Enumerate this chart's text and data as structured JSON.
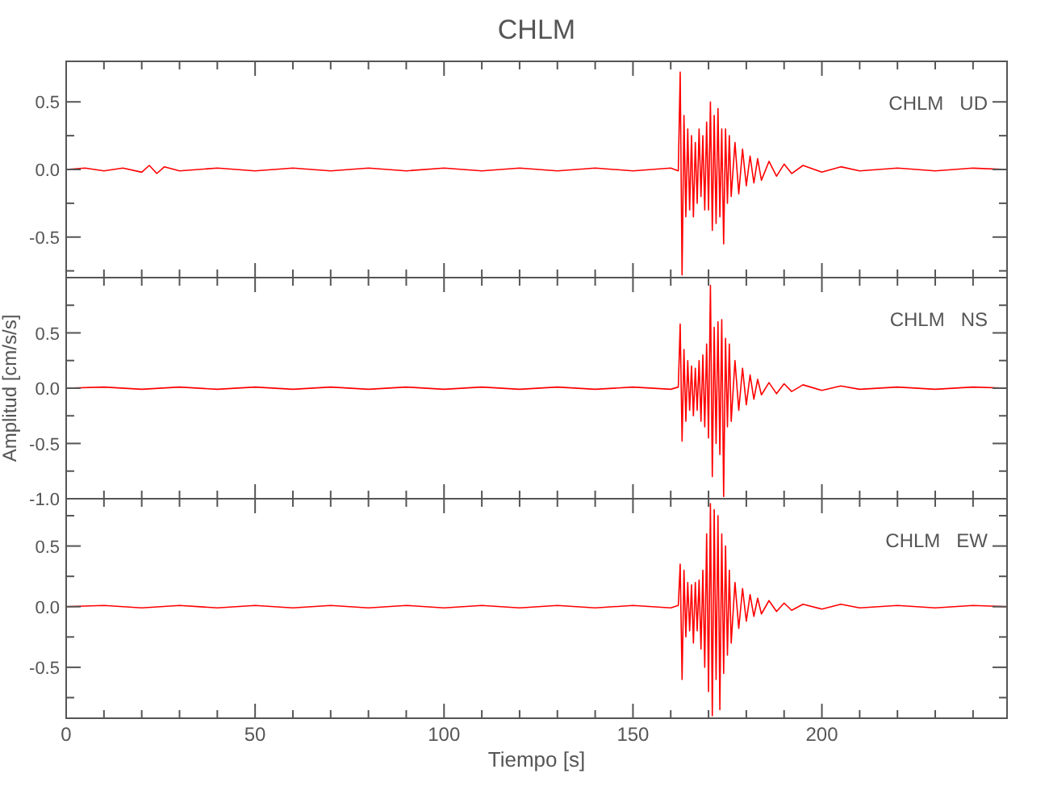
{
  "chart_data": [
    {
      "type": "line",
      "title": "CHLM",
      "annotations": [
        "CHLM   UD"
      ],
      "tick_labels": "y",
      "xlim": [
        0,
        249
      ],
      "ylim": [
        -0.8,
        0.8
      ],
      "xticks": [
        0,
        {
          "value": 10,
          "label": null
        },
        {
          "value": 20,
          "label": null
        },
        {
          "value": 30,
          "label": null
        },
        {
          "value": 40,
          "label": null
        },
        50,
        {
          "value": 60,
          "label": null
        },
        {
          "value": 70,
          "label": null
        },
        {
          "value": 80,
          "label": null
        },
        {
          "value": 90,
          "label": null
        },
        100,
        {
          "value": 110,
          "label": null
        },
        {
          "value": 120,
          "label": null
        },
        {
          "value": 130,
          "label": null
        },
        {
          "value": 140,
          "label": null
        },
        150,
        {
          "value": 160,
          "label": null
        },
        {
          "value": 170,
          "label": null
        },
        {
          "value": 180,
          "label": null
        },
        {
          "value": 190,
          "label": null
        },
        200,
        {
          "value": 210,
          "label": null
        },
        {
          "value": 220,
          "label": null
        },
        {
          "value": 230,
          "label": null
        },
        {
          "value": 240,
          "label": null
        }
      ],
      "yticks": [
        {
          "value": -0.75,
          "label": null
        },
        {
          "value": -0.5,
          "label": "-0.5"
        },
        {
          "value": -0.25,
          "label": null
        },
        {
          "value": 0,
          "label": "0.0"
        },
        {
          "value": 0.25,
          "label": null
        },
        {
          "value": 0.5,
          "label": "0.5"
        }
      ],
      "series": [
        {
          "color": "#ff0000",
          "x": [
            0,
            5,
            10,
            15,
            20,
            22,
            24,
            26,
            30,
            40,
            50,
            60,
            70,
            80,
            90,
            100,
            110,
            120,
            130,
            140,
            150,
            160,
            162,
            162.5,
            163,
            163.5,
            164,
            164.5,
            165,
            165.5,
            166,
            166.5,
            167,
            167.5,
            168,
            168.5,
            169,
            169.5,
            170,
            170.5,
            171,
            171.5,
            172,
            172.5,
            173,
            173.5,
            174,
            174.5,
            175,
            175.5,
            176,
            177,
            178,
            179,
            180,
            181,
            182,
            183,
            184,
            186,
            188,
            190,
            192,
            195,
            200,
            205,
            210,
            220,
            230,
            240,
            249
          ],
          "values": [
            0,
            0.01,
            -0.01,
            0.01,
            -0.02,
            0.03,
            -0.03,
            0.02,
            -0.01,
            0.01,
            -0.01,
            0.01,
            -0.01,
            0.01,
            -0.01,
            0.01,
            -0.01,
            0.01,
            -0.01,
            0.01,
            -0.01,
            0.01,
            -0.01,
            0.72,
            -0.78,
            0.4,
            -0.35,
            0.3,
            -0.3,
            0.25,
            -0.35,
            0.2,
            -0.25,
            0.3,
            -0.2,
            0.25,
            -0.3,
            0.35,
            -0.3,
            0.5,
            -0.45,
            0.4,
            -0.4,
            0.45,
            -0.35,
            0.3,
            -0.55,
            0.3,
            -0.25,
            0.25,
            -0.2,
            0.2,
            -0.18,
            0.15,
            -0.12,
            0.1,
            -0.1,
            0.08,
            -0.08,
            0.06,
            -0.05,
            0.04,
            -0.03,
            0.03,
            -0.02,
            0.02,
            -0.01,
            0.01,
            -0.01,
            0.01,
            0
          ]
        }
      ]
    },
    {
      "type": "line",
      "ylabel": "Amplitud [cm/s/s]",
      "annotations": [
        "CHLM   NS"
      ],
      "tick_labels": "y",
      "xlim": [
        0,
        249
      ],
      "ylim": [
        -1.0,
        1.0
      ],
      "xticks": [
        0,
        {
          "value": 10,
          "label": null
        },
        {
          "value": 20,
          "label": null
        },
        {
          "value": 30,
          "label": null
        },
        {
          "value": 40,
          "label": null
        },
        50,
        {
          "value": 60,
          "label": null
        },
        {
          "value": 70,
          "label": null
        },
        {
          "value": 80,
          "label": null
        },
        {
          "value": 90,
          "label": null
        },
        100,
        {
          "value": 110,
          "label": null
        },
        {
          "value": 120,
          "label": null
        },
        {
          "value": 130,
          "label": null
        },
        {
          "value": 140,
          "label": null
        },
        150,
        {
          "value": 160,
          "label": null
        },
        {
          "value": 170,
          "label": null
        },
        {
          "value": 180,
          "label": null
        },
        {
          "value": 190,
          "label": null
        },
        200,
        {
          "value": 210,
          "label": null
        },
        {
          "value": 220,
          "label": null
        },
        {
          "value": 230,
          "label": null
        },
        {
          "value": 240,
          "label": null
        }
      ],
      "yticks": [
        {
          "value": -1.0,
          "label": "-1.0"
        },
        {
          "value": -0.75,
          "label": null
        },
        {
          "value": -0.5,
          "label": "-0.5"
        },
        {
          "value": -0.25,
          "label": null
        },
        {
          "value": 0,
          "label": "0.0"
        },
        {
          "value": 0.25,
          "label": null
        },
        {
          "value": 0.5,
          "label": "0.5"
        },
        {
          "value": 0.75,
          "label": null
        }
      ],
      "series": [
        {
          "color": "#ff0000",
          "x": [
            0,
            10,
            20,
            30,
            40,
            50,
            60,
            70,
            80,
            90,
            100,
            110,
            120,
            130,
            140,
            150,
            160,
            162,
            162.5,
            163,
            163.5,
            164,
            164.5,
            165,
            165.5,
            166,
            166.5,
            167,
            167.5,
            168,
            168.5,
            169,
            169.5,
            170,
            170.5,
            171,
            171.5,
            172,
            172.5,
            173,
            173.5,
            174,
            174.5,
            175,
            175.5,
            176,
            177,
            178,
            179,
            180,
            181,
            182,
            183,
            184,
            186,
            188,
            190,
            192,
            195,
            200,
            205,
            210,
            220,
            230,
            240,
            249
          ],
          "values": [
            0,
            0.01,
            -0.01,
            0.01,
            -0.01,
            0.01,
            -0.01,
            0.01,
            -0.01,
            0.01,
            -0.01,
            0.01,
            -0.01,
            0.01,
            -0.01,
            0.01,
            -0.01,
            0.01,
            0.58,
            -0.48,
            0.35,
            -0.3,
            0.25,
            -0.2,
            0.2,
            -0.25,
            0.18,
            -0.2,
            0.25,
            -0.3,
            0.3,
            -0.35,
            0.4,
            -0.45,
            0.93,
            -0.8,
            0.55,
            -0.5,
            0.6,
            -0.6,
            0.62,
            -0.98,
            0.45,
            -0.35,
            0.4,
            -0.3,
            0.25,
            -0.2,
            0.18,
            -0.15,
            0.12,
            -0.1,
            0.08,
            -0.06,
            0.05,
            -0.05,
            0.04,
            -0.03,
            0.03,
            -0.02,
            0.02,
            -0.01,
            0.01,
            -0.01,
            0.01,
            0
          ]
        }
      ]
    },
    {
      "type": "line",
      "xlabel": "Tiempo [s]",
      "annotations": [
        "CHLM   EW"
      ],
      "xlim": [
        0,
        249
      ],
      "ylim": [
        -0.92,
        0.89
      ],
      "xticks": [
        0,
        {
          "value": 10,
          "label": null
        },
        {
          "value": 20,
          "label": null
        },
        {
          "value": 30,
          "label": null
        },
        {
          "value": 40,
          "label": null
        },
        50,
        {
          "value": 60,
          "label": null
        },
        {
          "value": 70,
          "label": null
        },
        {
          "value": 80,
          "label": null
        },
        {
          "value": 90,
          "label": null
        },
        100,
        {
          "value": 110,
          "label": null
        },
        {
          "value": 120,
          "label": null
        },
        {
          "value": 130,
          "label": null
        },
        {
          "value": 140,
          "label": null
        },
        150,
        {
          "value": 160,
          "label": null
        },
        {
          "value": 170,
          "label": null
        },
        {
          "value": 180,
          "label": null
        },
        {
          "value": 190,
          "label": null
        },
        200,
        {
          "value": 210,
          "label": null
        },
        {
          "value": 220,
          "label": null
        },
        {
          "value": 230,
          "label": null
        },
        {
          "value": 240,
          "label": null
        }
      ],
      "yticks": [
        {
          "value": -0.75,
          "label": null
        },
        {
          "value": -0.5,
          "label": "-0.5"
        },
        {
          "value": -0.25,
          "label": null
        },
        {
          "value": 0,
          "label": "0.0"
        },
        {
          "value": 0.25,
          "label": null
        },
        {
          "value": 0.5,
          "label": "0.5"
        },
        {
          "value": 0.75,
          "label": null
        }
      ],
      "series": [
        {
          "color": "#ff0000",
          "x": [
            0,
            10,
            20,
            30,
            40,
            50,
            60,
            70,
            80,
            90,
            100,
            110,
            120,
            130,
            140,
            150,
            160,
            162,
            162.5,
            163,
            163.5,
            164,
            164.5,
            165,
            165.5,
            166,
            166.5,
            167,
            167.5,
            168,
            168.5,
            169,
            169.5,
            170,
            170.5,
            171,
            171.5,
            172,
            172.5,
            173,
            173.5,
            174,
            174.5,
            175,
            175.5,
            176,
            177,
            178,
            179,
            180,
            181,
            182,
            183,
            184,
            186,
            188,
            190,
            192,
            195,
            200,
            205,
            210,
            220,
            230,
            240,
            249
          ],
          "values": [
            0,
            0.01,
            -0.01,
            0.01,
            -0.01,
            0.01,
            -0.01,
            0.01,
            -0.01,
            0.01,
            -0.01,
            0.01,
            -0.01,
            0.01,
            -0.01,
            0.01,
            -0.01,
            0.01,
            0.35,
            -0.6,
            0.3,
            -0.25,
            0.2,
            -0.2,
            0.18,
            -0.3,
            0.2,
            -0.2,
            0.22,
            -0.35,
            0.3,
            -0.5,
            0.6,
            -0.7,
            0.85,
            -0.9,
            0.8,
            -0.6,
            0.75,
            -0.85,
            0.6,
            -0.55,
            0.5,
            -0.4,
            0.3,
            -0.3,
            0.2,
            -0.18,
            0.15,
            -0.12,
            0.1,
            -0.08,
            0.07,
            -0.06,
            0.05,
            -0.04,
            0.03,
            -0.03,
            0.02,
            -0.02,
            0.02,
            -0.01,
            0.01,
            -0.01,
            0.01,
            0
          ]
        }
      ]
    }
  ]
}
